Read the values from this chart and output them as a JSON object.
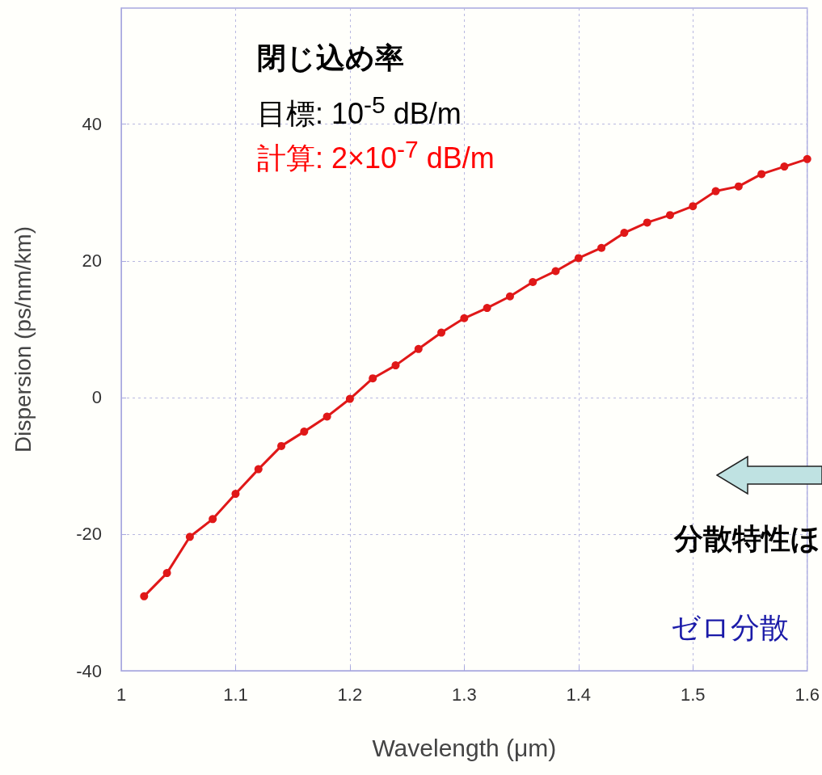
{
  "chart_data": {
    "type": "line",
    "xlabel": "Wavelength (μm)",
    "ylabel": "Dispersion (ps/nm/km)",
    "x": [
      1.02,
      1.04,
      1.06,
      1.08,
      1.1,
      1.12,
      1.14,
      1.16,
      1.18,
      1.2,
      1.22,
      1.24,
      1.26,
      1.28,
      1.3,
      1.32,
      1.34,
      1.36,
      1.38,
      1.4,
      1.42,
      1.44,
      1.46,
      1.48,
      1.5,
      1.52,
      1.54,
      1.56,
      1.58,
      1.6
    ],
    "series": [
      {
        "color": "#e01818",
        "values": [
          -29.1,
          -25.7,
          -20.4,
          -17.8,
          -14.1,
          -10.5,
          -7.1,
          -5.0,
          -2.8,
          -0.2,
          2.8,
          4.7,
          7.1,
          9.5,
          11.6,
          13.1,
          14.8,
          16.9,
          18.5,
          20.4,
          21.9,
          24.1,
          25.6,
          26.7,
          28.0,
          30.2,
          30.9,
          32.7,
          33.8,
          34.9
        ]
      }
    ],
    "xlim": [
      1,
      1.6
    ],
    "xticks": [
      1,
      1.1,
      1.2,
      1.3,
      1.4,
      1.5,
      1.6
    ],
    "ylim": [
      -40,
      57
    ],
    "yticks": [
      -40,
      -20,
      0,
      20,
      40
    ],
    "grid": true,
    "marker": "circle",
    "line_style": "solid",
    "annotations": [
      "閉じ込め率",
      "目標:  10$^{-5}$ dB/m",
      "計算: 2×10$^{-7}$ dB/m",
      "分散特性ほ",
      "ゼロ分散"
    ]
  }
}
